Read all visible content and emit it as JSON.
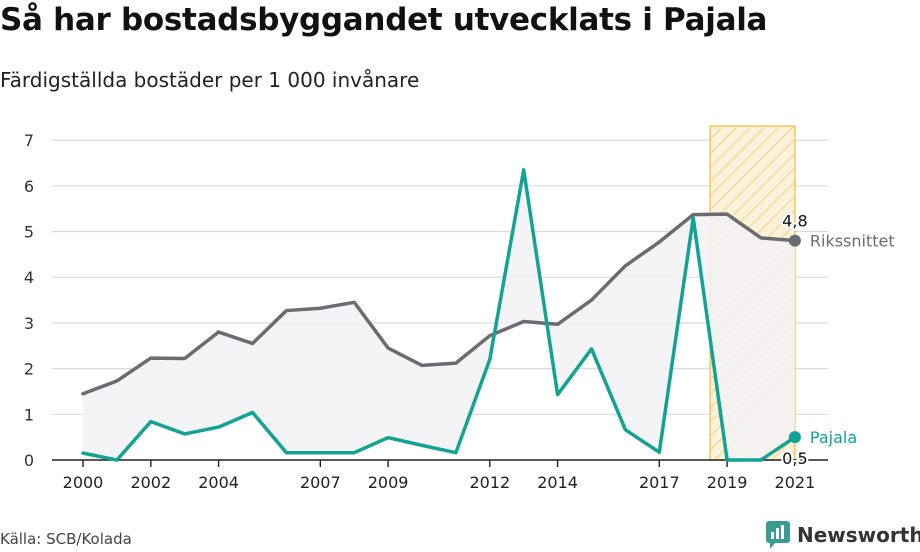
{
  "title": "Så har bostadsbyggandet utvecklats i Pajala",
  "subtitle": "Färdigställda bostäder per 1 000 invånare",
  "source": "Källa: SCB/Kolada",
  "logo_text": "Newsworthy",
  "colors": {
    "riket": "#6b6b70",
    "pajala": "#12a394",
    "highlight_fill": "#fbe7b8",
    "highlight_stroke": "#f5c55a",
    "area": "#f2f2f4",
    "grid": "#dcdcdc"
  },
  "chart_data": {
    "type": "line",
    "x": [
      2000,
      2001,
      2002,
      2003,
      2004,
      2005,
      2006,
      2007,
      2008,
      2009,
      2010,
      2011,
      2012,
      2013,
      2014,
      2015,
      2016,
      2017,
      2018,
      2019,
      2020,
      2021
    ],
    "x_tick_labels": [
      "2000",
      "2002",
      "2004",
      "2007",
      "2009",
      "2012",
      "2014",
      "2017",
      "2019",
      "2021"
    ],
    "y_ticks": [
      0,
      1,
      2,
      3,
      4,
      5,
      6,
      7
    ],
    "ylim": [
      0,
      7
    ],
    "series": [
      {
        "name": "Rikssnittet",
        "values": [
          1.45,
          1.73,
          2.23,
          2.22,
          2.8,
          2.55,
          3.27,
          3.32,
          3.45,
          2.45,
          2.07,
          2.12,
          2.72,
          3.03,
          2.97,
          3.5,
          4.25,
          4.77,
          5.37,
          5.38,
          4.86,
          4.8
        ],
        "end_label": "4,8"
      },
      {
        "name": "Pajala",
        "values": [
          0.15,
          0.0,
          0.84,
          0.57,
          0.72,
          1.04,
          0.16,
          0.16,
          0.16,
          0.49,
          0.32,
          0.16,
          2.2,
          6.35,
          1.43,
          2.43,
          0.66,
          0.17,
          5.3,
          0.0,
          0.0,
          0.5
        ],
        "end_label": "0,5"
      }
    ],
    "highlight_range": [
      2018.5,
      2021
    ],
    "grid": true
  }
}
